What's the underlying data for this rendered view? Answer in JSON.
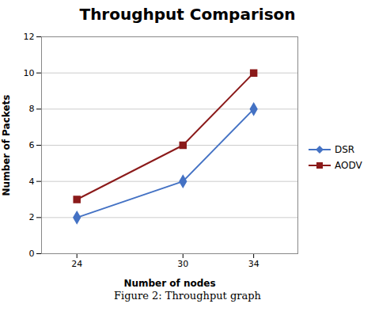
{
  "chart_data": {
    "type": "line",
    "title": "Throughput Comparison",
    "xlabel": "Number of nodes",
    "ylabel": "Number of Packets",
    "caption": "Figure 2: Throughput graph",
    "x": [
      24,
      30,
      34
    ],
    "series": [
      {
        "name": "DSR",
        "color": "#4472C4",
        "marker": "diamond",
        "values": [
          2,
          4,
          8
        ]
      },
      {
        "name": "AODV",
        "color": "#8B1A1A",
        "marker": "square",
        "values": [
          3,
          6,
          10
        ]
      }
    ],
    "xlim": [
      22,
      36.5
    ],
    "xticks": [
      24,
      30,
      34
    ],
    "ylim": [
      0,
      12
    ],
    "yticks": [
      0,
      2,
      4,
      6,
      8,
      10,
      12
    ],
    "grid": "y",
    "legend": "right"
  }
}
